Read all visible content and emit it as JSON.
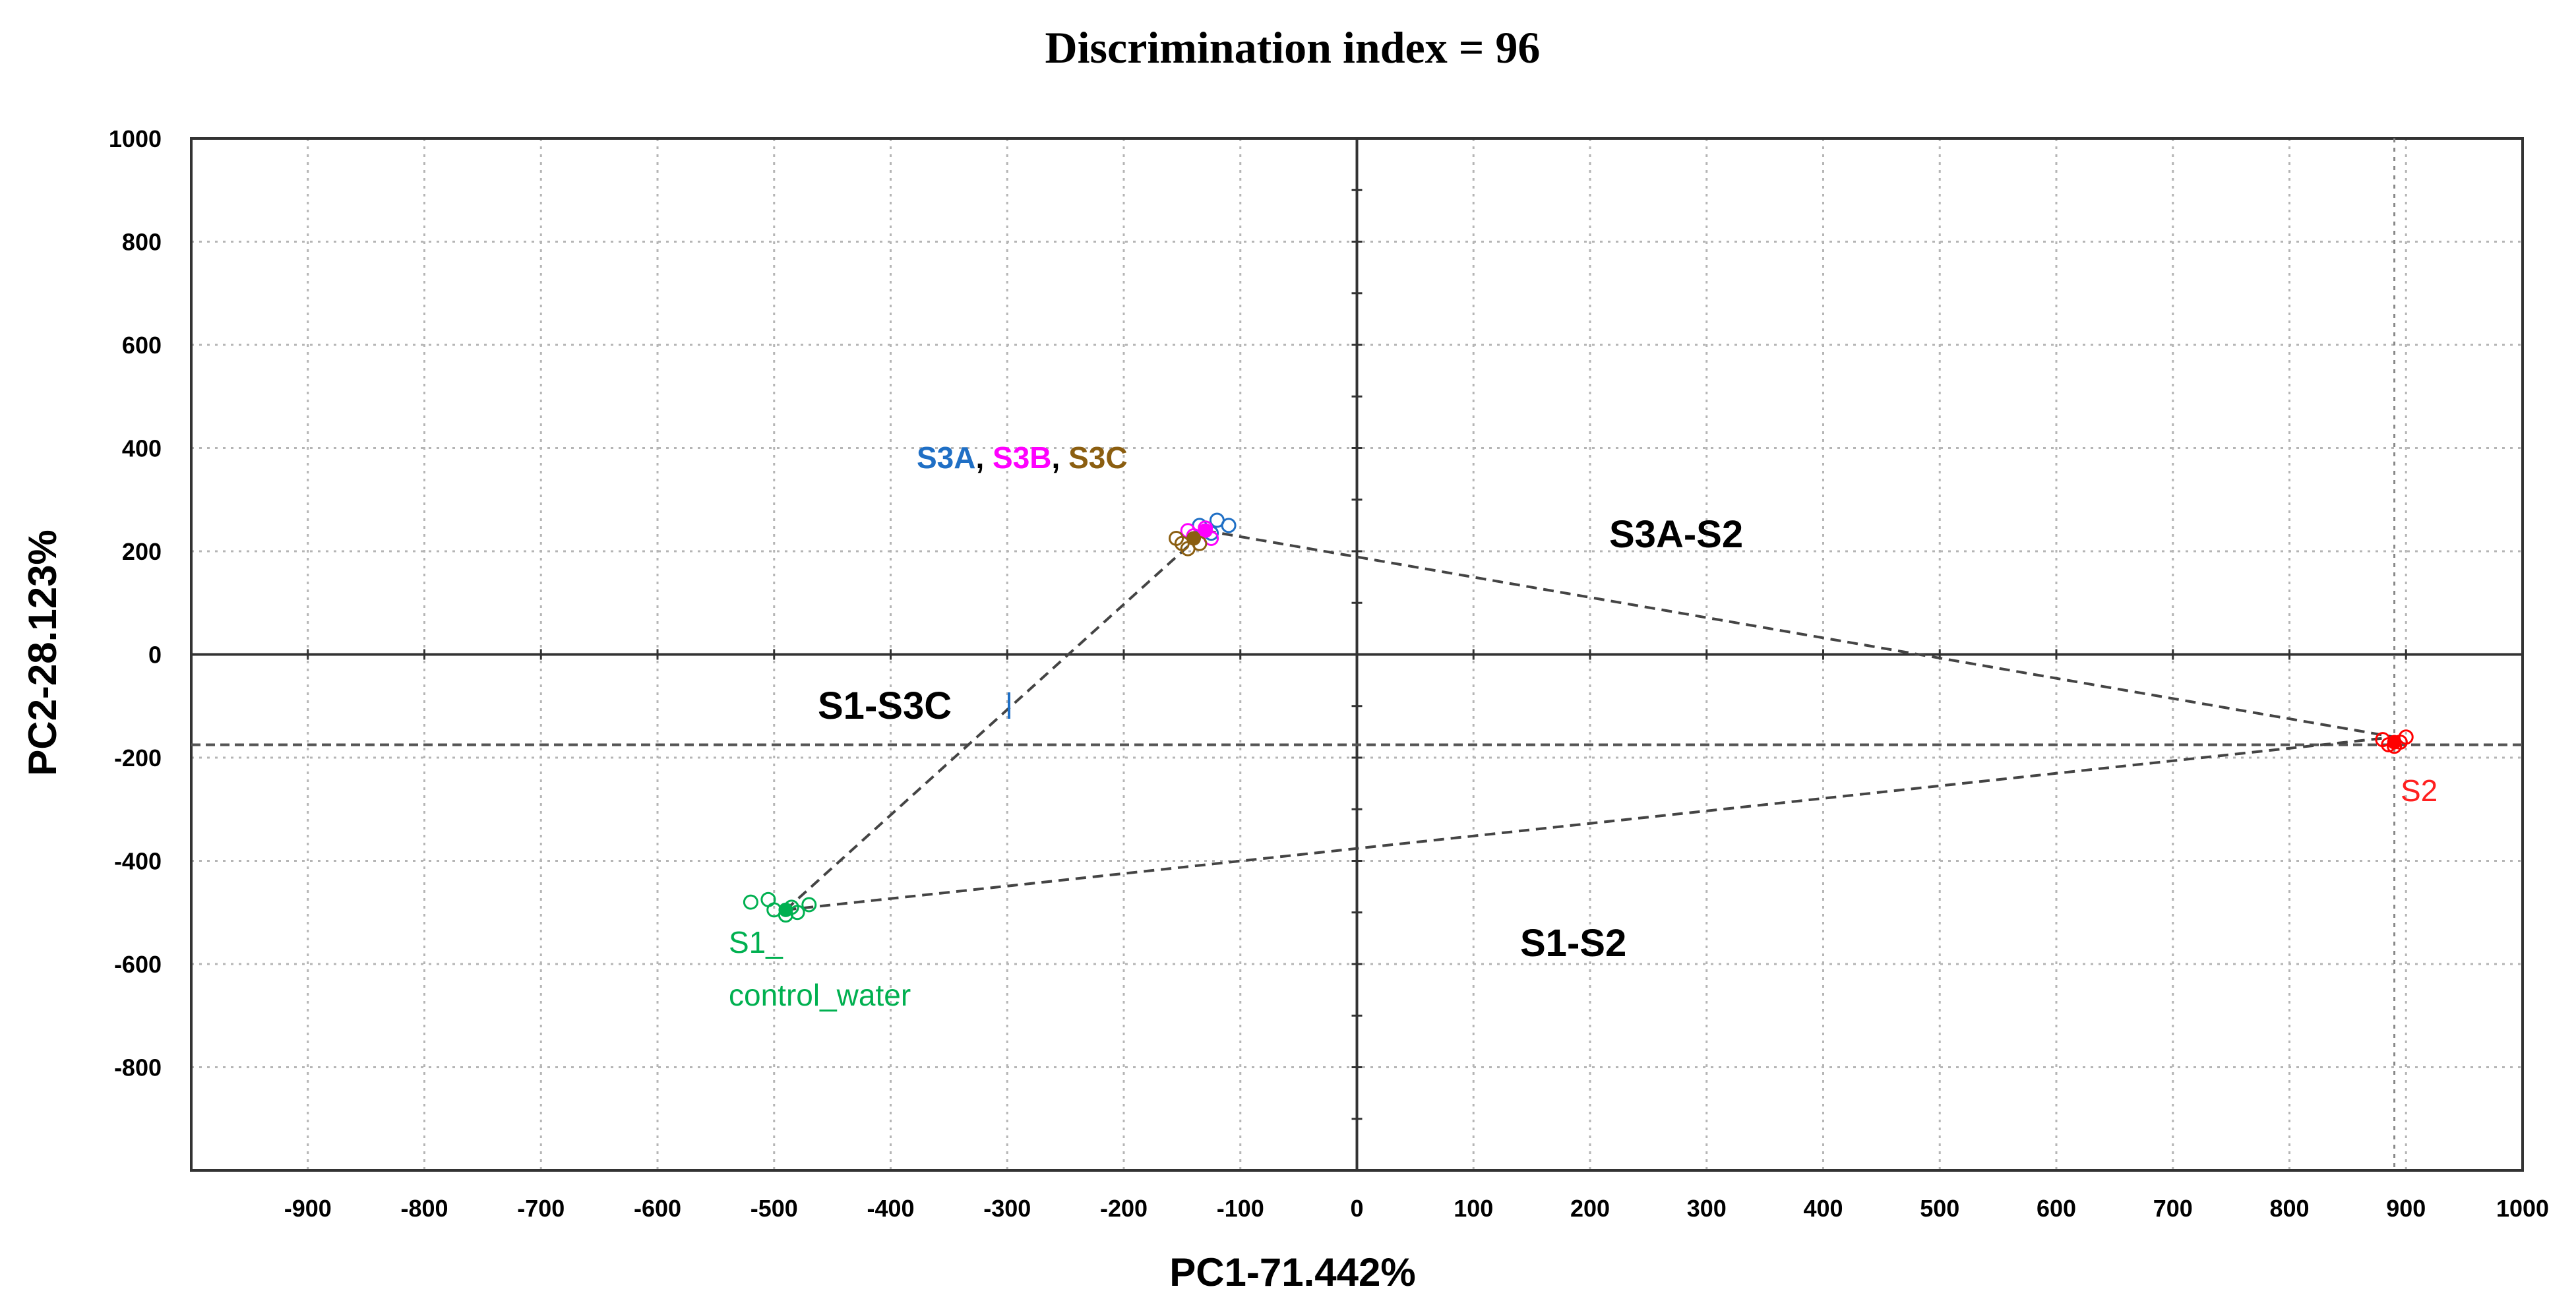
{
  "chart_data": {
    "type": "scatter",
    "title": "Discrimination index = 96",
    "xlabel": "PC1-71.442%",
    "ylabel": "PC2-28.123%",
    "xlim": [
      -1000,
      1000
    ],
    "ylim": [
      -1000,
      1000
    ],
    "grid": true,
    "x_ticks": [
      -900,
      -800,
      -700,
      -600,
      -500,
      -400,
      -300,
      -200,
      -100,
      0,
      100,
      200,
      300,
      400,
      500,
      600,
      700,
      800,
      900,
      1000
    ],
    "y_ticks": [
      1000,
      800,
      600,
      400,
      200,
      0,
      -200,
      -400,
      -600,
      -800
    ],
    "reference_lines": {
      "horizontal_y": -175,
      "vertical_x": 890
    },
    "series": [
      {
        "name": "S1_control_water",
        "color": "#00b050",
        "centroid": [
          -490,
          -495
        ],
        "points": [
          [
            -520,
            -480
          ],
          [
            -500,
            -495
          ],
          [
            -490,
            -505
          ],
          [
            -480,
            -500
          ],
          [
            -470,
            -485
          ],
          [
            -505,
            -475
          ],
          [
            -485,
            -490
          ]
        ]
      },
      {
        "name": "S3A",
        "color": "#1f6fc5",
        "centroid": [
          -130,
          240
        ],
        "points": [
          [
            -120,
            260
          ],
          [
            -110,
            250
          ],
          [
            -125,
            235
          ],
          [
            -135,
            250
          ]
        ]
      },
      {
        "name": "S3B",
        "color": "#ff00ff",
        "centroid": [
          -130,
          240
        ],
        "points": [
          [
            -130,
            245
          ],
          [
            -140,
            230
          ],
          [
            -125,
            225
          ],
          [
            -145,
            240
          ]
        ]
      },
      {
        "name": "S3C",
        "color": "#8b5e10",
        "centroid": [
          -140,
          225
        ],
        "points": [
          [
            -150,
            215
          ],
          [
            -145,
            205
          ],
          [
            -135,
            215
          ],
          [
            -155,
            225
          ]
        ]
      },
      {
        "name": "S2",
        "color": "#ff0000",
        "centroid": [
          890,
          -170
        ],
        "points": [
          [
            885,
            -175
          ],
          [
            895,
            -170
          ],
          [
            900,
            -160
          ],
          [
            880,
            -165
          ],
          [
            890,
            -178
          ]
        ]
      }
    ],
    "connections": [
      {
        "from": [
          -490,
          -495
        ],
        "to": [
          -130,
          240
        ]
      },
      {
        "from": [
          -130,
          240
        ],
        "to": [
          890,
          -160
        ]
      },
      {
        "from": [
          -490,
          -495
        ],
        "to": [
          890,
          -160
        ]
      }
    ],
    "annotations": {
      "group_label_title": {
        "parts": [
          "S3A",
          ", ",
          "S3B",
          ", ",
          "S3C"
        ],
        "colors": [
          "#1f6fc5",
          "#000000",
          "#ff00ff",
          "#000000",
          "#8b5e10"
        ]
      },
      "s1_label_line1": "S1_",
      "s1_label_line2": "control_water",
      "s2_label": "S2",
      "region_s3a_s2": "S3A-S2",
      "region_s1_s3c": "S1-S3C",
      "region_s1_s2": "S1-S2"
    }
  }
}
